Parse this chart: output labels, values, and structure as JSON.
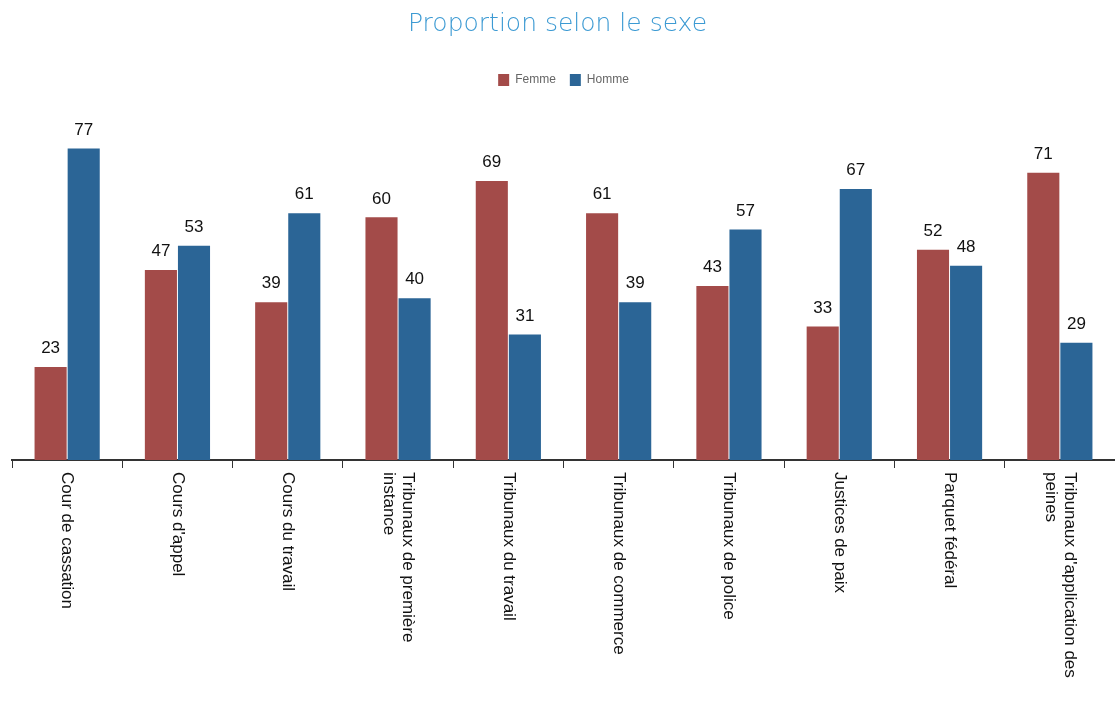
{
  "chart_data": {
    "type": "bar",
    "title": "Proportion selon le sexe",
    "categories": [
      "Cour de cassation",
      "Cours d'appel",
      "Cours du travail",
      "Tribunaux de première instance",
      "Tribunaux du travail",
      "Tribunaux de commerce",
      "Tribunaux de police",
      "Justices de paix",
      "Parquet fédéral",
      "Tribunaux d'application des peines"
    ],
    "series": [
      {
        "name": "Femme",
        "color": "#a34b49",
        "values": [
          23,
          47,
          39,
          60,
          69,
          61,
          43,
          33,
          52,
          71
        ]
      },
      {
        "name": "Homme",
        "color": "#2b6596",
        "values": [
          77,
          53,
          61,
          40,
          31,
          39,
          57,
          67,
          48,
          29
        ]
      }
    ],
    "data_labels": true,
    "legend": "top",
    "grid": false,
    "tick_labels": "x"
  }
}
